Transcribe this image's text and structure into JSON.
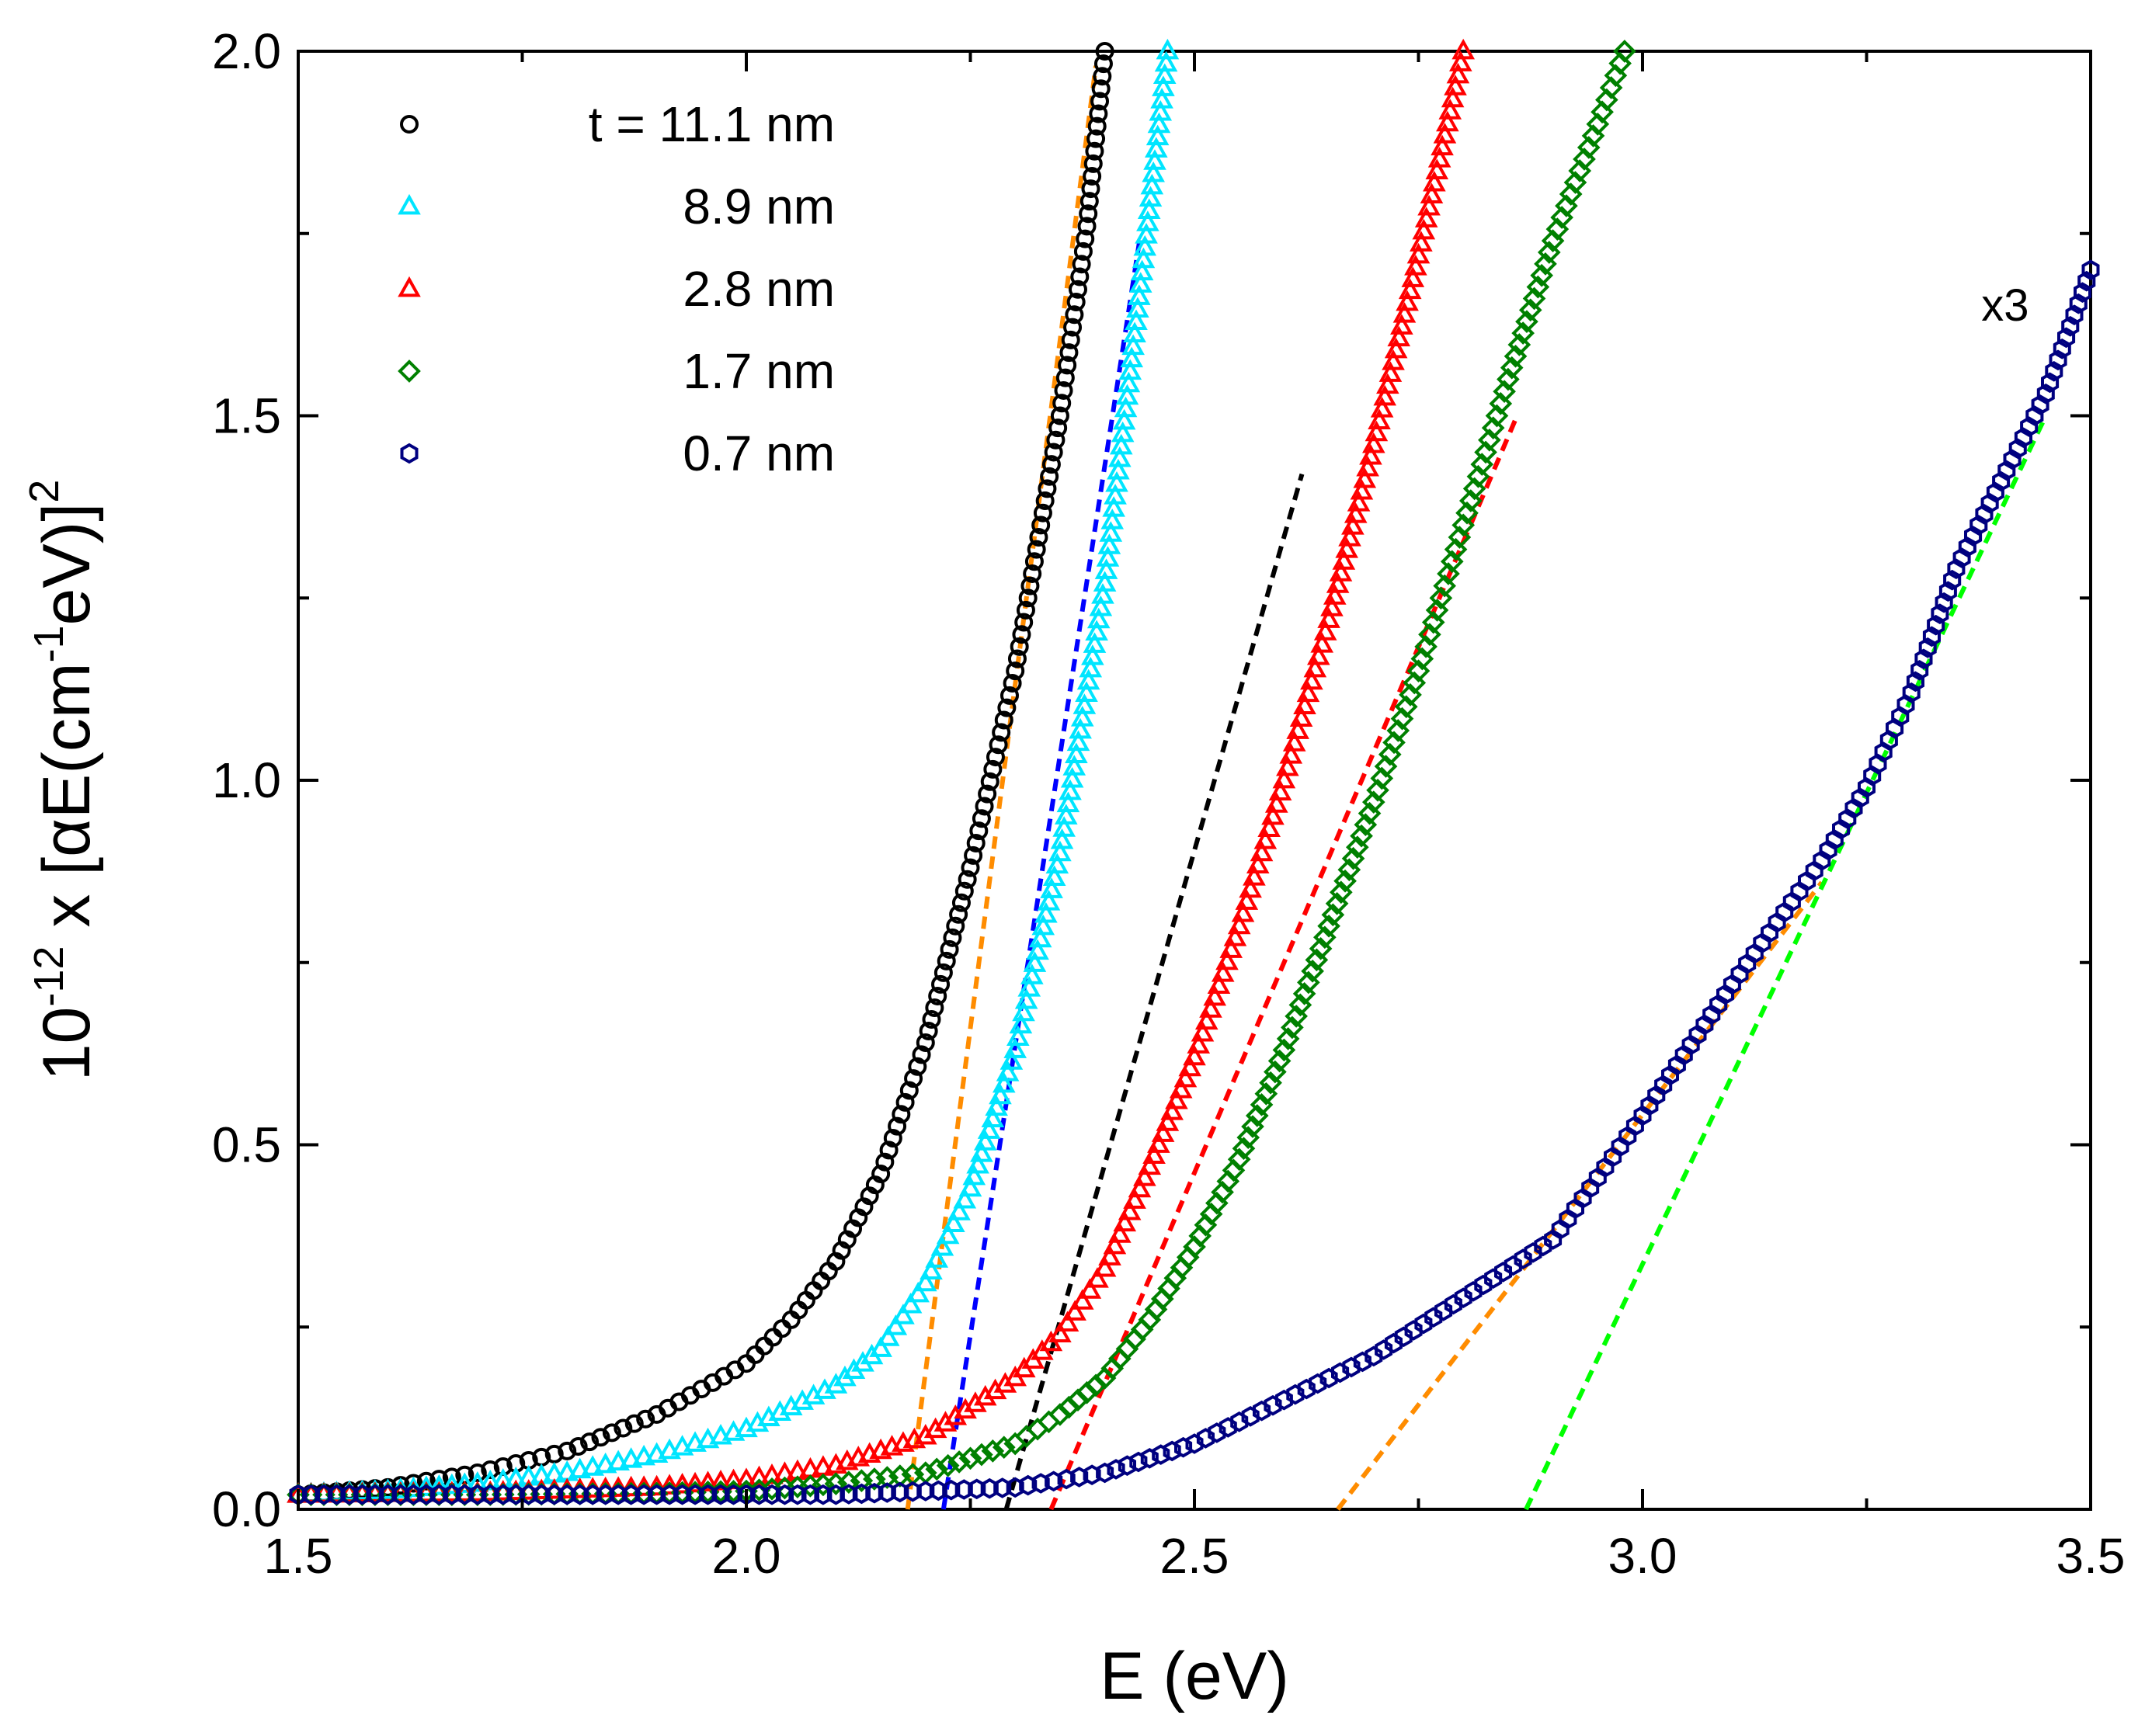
{
  "chart_data": {
    "type": "scatter",
    "xlabel": "E (eV)",
    "ylabel": {
      "prefix": "10",
      "prefix_exp": "-12",
      "main": " x [αE(cm",
      "unit_exp": "-1",
      "tail": "eV)]",
      "outer_exp": "2"
    },
    "xlim": [
      1.5,
      3.5
    ],
    "ylim": [
      0.0,
      2.0
    ],
    "xticks": [
      "1.5",
      "2.0",
      "2.5",
      "3.0",
      "3.5"
    ],
    "yticks": [
      "0.0",
      "0.5",
      "1.0",
      "1.5",
      "2.0"
    ],
    "grid": false,
    "legend_position": "top-left",
    "annotations": [
      {
        "text": "x3",
        "x": 3.43,
        "y": 1.62
      }
    ],
    "series": [
      {
        "name": "t = 11.1 nm",
        "marker": "circle",
        "color": "#000000",
        "points": [
          [
            1.5,
            0.02
          ],
          [
            1.6,
            0.03
          ],
          [
            1.7,
            0.05
          ],
          [
            1.8,
            0.08
          ],
          [
            1.9,
            0.13
          ],
          [
            2.0,
            0.2
          ],
          [
            2.05,
            0.26
          ],
          [
            2.1,
            0.34
          ],
          [
            2.15,
            0.46
          ],
          [
            2.2,
            0.64
          ],
          [
            2.25,
            0.88
          ],
          [
            2.3,
            1.15
          ],
          [
            2.35,
            1.5
          ],
          [
            2.38,
            1.76
          ],
          [
            2.4,
            2.0
          ]
        ]
      },
      {
        "name": "8.9 nm",
        "marker": "triangle",
        "color": "#00e5ff",
        "points": [
          [
            1.5,
            0.02
          ],
          [
            1.6,
            0.025
          ],
          [
            1.7,
            0.035
          ],
          [
            1.8,
            0.05
          ],
          [
            1.9,
            0.075
          ],
          [
            2.0,
            0.11
          ],
          [
            2.1,
            0.17
          ],
          [
            2.15,
            0.22
          ],
          [
            2.2,
            0.31
          ],
          [
            2.25,
            0.44
          ],
          [
            2.3,
            0.63
          ],
          [
            2.35,
            0.9
          ],
          [
            2.4,
            1.27
          ],
          [
            2.44,
            1.68
          ],
          [
            2.47,
            2.0
          ]
        ]
      },
      {
        "name": "2.8 nm",
        "marker": "triangle",
        "color": "#ff0000",
        "points": [
          [
            1.5,
            0.02
          ],
          [
            1.7,
            0.022
          ],
          [
            1.9,
            0.03
          ],
          [
            2.0,
            0.04
          ],
          [
            2.1,
            0.06
          ],
          [
            2.2,
            0.1
          ],
          [
            2.3,
            0.18
          ],
          [
            2.35,
            0.24
          ],
          [
            2.4,
            0.33
          ],
          [
            2.45,
            0.47
          ],
          [
            2.5,
            0.62
          ],
          [
            2.55,
            0.8
          ],
          [
            2.6,
            1.0
          ],
          [
            2.65,
            1.22
          ],
          [
            2.7,
            1.46
          ],
          [
            2.75,
            1.72
          ],
          [
            2.8,
            2.0
          ]
        ]
      },
      {
        "name": "1.7 nm",
        "marker": "diamond",
        "color": "#008000",
        "points": [
          [
            1.5,
            0.02
          ],
          [
            1.7,
            0.02
          ],
          [
            1.9,
            0.022
          ],
          [
            2.0,
            0.025
          ],
          [
            2.1,
            0.035
          ],
          [
            2.2,
            0.05
          ],
          [
            2.3,
            0.09
          ],
          [
            2.35,
            0.13
          ],
          [
            2.4,
            0.18
          ],
          [
            2.45,
            0.26
          ],
          [
            2.5,
            0.36
          ],
          [
            2.55,
            0.48
          ],
          [
            2.6,
            0.63
          ],
          [
            2.65,
            0.8
          ],
          [
            2.7,
            0.97
          ],
          [
            2.75,
            1.15
          ],
          [
            2.8,
            1.35
          ],
          [
            2.85,
            1.55
          ],
          [
            2.9,
            1.74
          ],
          [
            2.95,
            1.9
          ],
          [
            2.98,
            2.0
          ]
        ]
      },
      {
        "name": "0.7 nm",
        "marker": "hexagon",
        "color": "#000080",
        "points": [
          [
            1.5,
            0.02
          ],
          [
            1.7,
            0.02
          ],
          [
            1.9,
            0.02
          ],
          [
            2.1,
            0.02
          ],
          [
            2.2,
            0.025
          ],
          [
            2.3,
            0.03
          ],
          [
            2.4,
            0.05
          ],
          [
            2.5,
            0.09
          ],
          [
            2.6,
            0.15
          ],
          [
            2.7,
            0.21
          ],
          [
            2.8,
            0.29
          ],
          [
            2.9,
            0.37
          ],
          [
            3.0,
            0.54
          ],
          [
            3.1,
            0.72
          ],
          [
            3.2,
            0.89
          ],
          [
            3.25,
            0.99
          ],
          [
            3.3,
            1.12
          ],
          [
            3.35,
            1.29
          ],
          [
            3.4,
            1.41
          ],
          [
            3.45,
            1.53
          ],
          [
            3.5,
            1.7
          ]
        ]
      }
    ],
    "fit_lines": [
      {
        "color": "#ff8c00",
        "x": [
          2.18,
          2.39
        ],
        "y": [
          0.0,
          1.98
        ]
      },
      {
        "color": "#0000ff",
        "x": [
          2.22,
          2.44
        ],
        "y": [
          0.0,
          1.75
        ]
      },
      {
        "color": "#000000",
        "x": [
          2.29,
          2.62
        ],
        "y": [
          0.0,
          1.42
        ]
      },
      {
        "color": "#ff0000",
        "x": [
          2.34,
          2.86
        ],
        "y": [
          0.0,
          1.5
        ]
      },
      {
        "color": "#ff8c00",
        "x": [
          2.66,
          3.2
        ],
        "y": [
          0.0,
          0.86
        ]
      },
      {
        "color": "#00ff00",
        "x": [
          2.87,
          3.45
        ],
        "y": [
          0.0,
          1.5
        ]
      }
    ]
  }
}
